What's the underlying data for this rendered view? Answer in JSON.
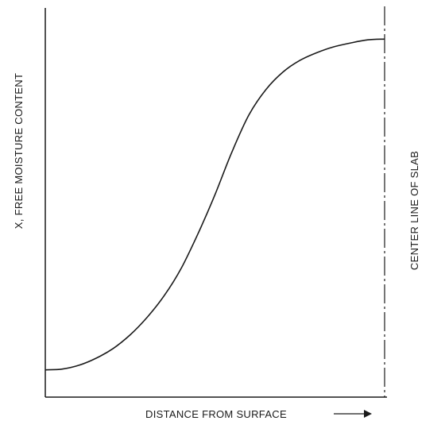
{
  "chart_data": {
    "type": "line",
    "xlabel": "DISTANCE FROM SURFACE",
    "ylabel": "X, FREE MOISTURE CONTENT",
    "annotation": "CENTER LINE OF SLAB",
    "x_arrow": "right-arrow",
    "xlim": [
      0,
      1
    ],
    "ylim": [
      0,
      1
    ],
    "grid": false,
    "legend": "none",
    "series": [
      {
        "x": [
          0.0,
          0.05,
          0.1,
          0.15,
          0.2,
          0.25,
          0.3,
          0.35,
          0.4,
          0.45,
          0.5,
          0.55,
          0.6,
          0.65,
          0.7,
          0.75,
          0.8,
          0.85,
          0.9,
          0.95,
          1.0
        ],
        "values": [
          0.07,
          0.072,
          0.082,
          0.1,
          0.125,
          0.16,
          0.205,
          0.26,
          0.33,
          0.42,
          0.52,
          0.63,
          0.725,
          0.79,
          0.835,
          0.865,
          0.885,
          0.9,
          0.91,
          0.918,
          0.92
        ]
      }
    ],
    "colors": {
      "line": "#1a1a1a",
      "axis": "#1a1a1a"
    }
  }
}
